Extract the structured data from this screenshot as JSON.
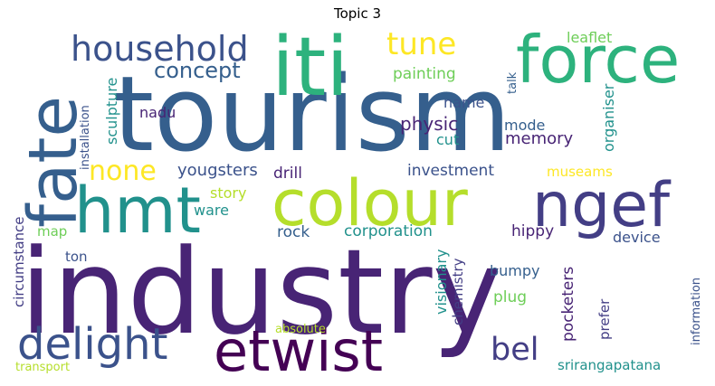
{
  "title": "Topic 3",
  "colors": {
    "dark_purple": "#482475",
    "purple": "#433e85",
    "slate_blue": "#355f8d",
    "blue": "#3b528b",
    "teal": "#21918c",
    "green": "#2db27d",
    "light_green": "#6ece58",
    "lime": "#b5de2b",
    "yellow": "#fde725",
    "deep_purple": "#440154"
  },
  "words": {
    "tourism": "tourism",
    "industry": "industry",
    "iti": "iti",
    "force": "force",
    "colour": "colour",
    "fate": "fate",
    "hmt": "hmt",
    "ngef": "ngef",
    "etwist": "etwist",
    "delight": "delight",
    "household": "household",
    "tune": "tune",
    "bel": "bel",
    "none": "none",
    "concept": "concept",
    "leaflet": "leaflet",
    "painting": "painting",
    "talk": "talk",
    "organiser": "organiser",
    "name": "name",
    "physic": "physic",
    "mode": "mode",
    "memory": "memory",
    "cut": "cut",
    "nadu": "nadu",
    "sculpture": "sculpture",
    "installation": "installation",
    "yougsters": "yougsters",
    "drill": "drill",
    "investment": "investment",
    "museams": "museams",
    "story": "story",
    "ware": "ware",
    "circumstance": "circumstance",
    "map": "map",
    "ton": "ton",
    "rock": "rock",
    "corporation": "corporation",
    "hippy": "hippy",
    "device": "device",
    "visionary": "visionary",
    "chemistry": "chemistry",
    "bumpy": "bumpy",
    "plug": "plug",
    "pocketers": "pocketers",
    "prefer": "prefer",
    "information": "information",
    "srirangapatana": "srirangapatana",
    "absolute": "absolute",
    "transport": "transport"
  }
}
